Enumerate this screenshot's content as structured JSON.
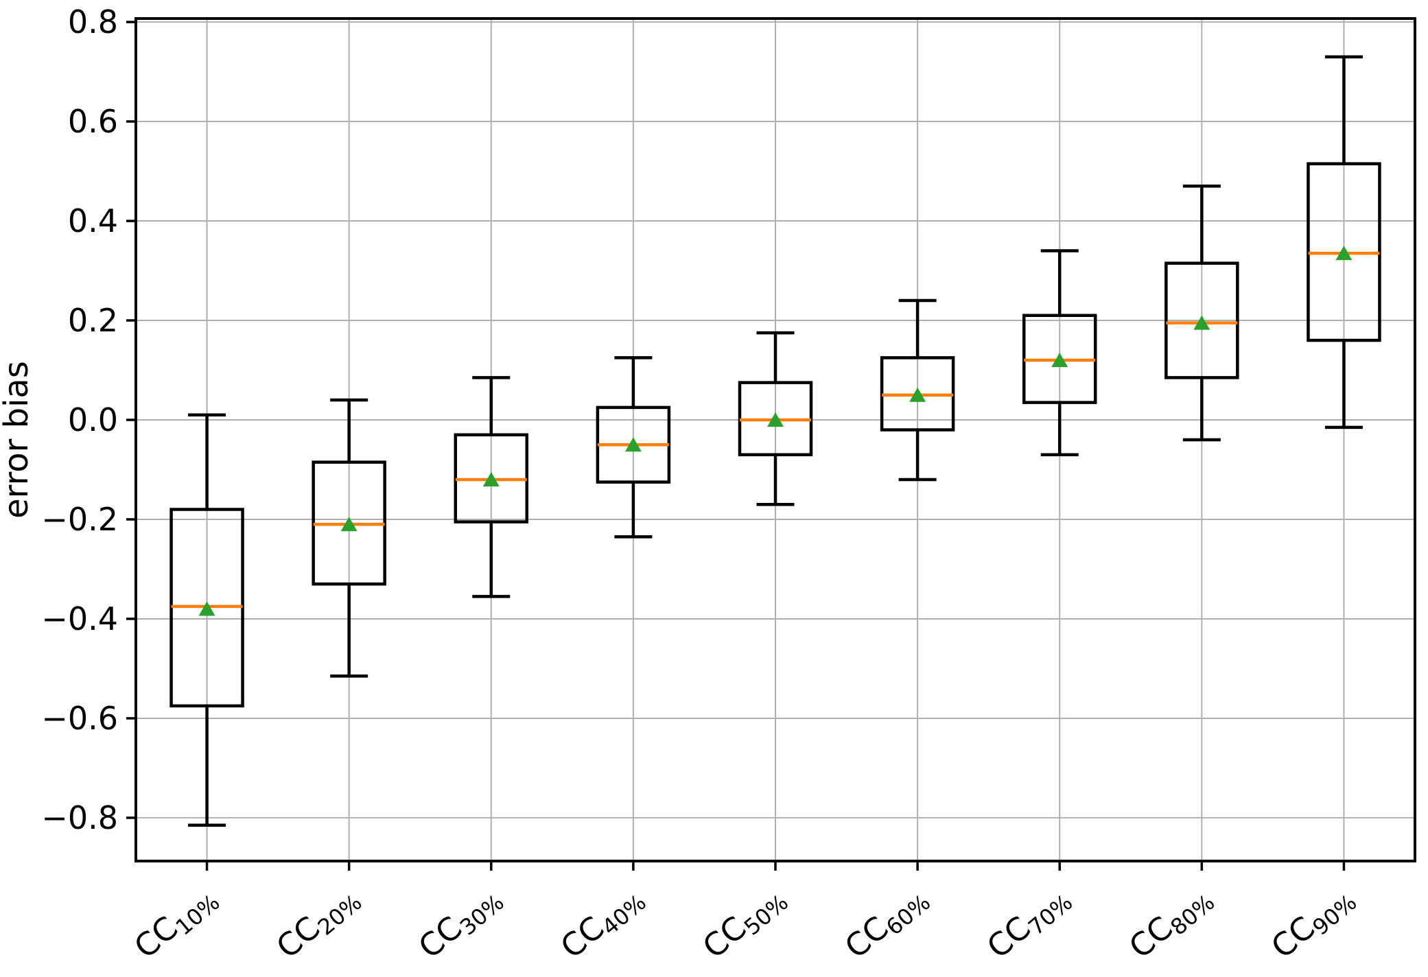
{
  "chart_data": {
    "type": "boxplot",
    "title": "",
    "xlabel": "",
    "ylabel": "error bias",
    "grid": true,
    "legend": "none",
    "ylim": [
      -0.887,
      0.807
    ],
    "y_ticks": [
      {
        "v": 0.8,
        "label": "0.8"
      },
      {
        "v": 0.6,
        "label": "0.6"
      },
      {
        "v": 0.4,
        "label": "0.4"
      },
      {
        "v": 0.2,
        "label": "0.2"
      },
      {
        "v": 0.0,
        "label": "0.0"
      },
      {
        "v": -0.2,
        "label": "−0.2"
      },
      {
        "v": -0.4,
        "label": "−0.4"
      },
      {
        "v": -0.6,
        "label": "−0.6"
      },
      {
        "v": -0.8,
        "label": "−0.8"
      }
    ],
    "categories": [
      {
        "base": "CC",
        "sub": "10%"
      },
      {
        "base": "CC",
        "sub": "20%"
      },
      {
        "base": "CC",
        "sub": "30%"
      },
      {
        "base": "CC",
        "sub": "40%"
      },
      {
        "base": "CC",
        "sub": "50%"
      },
      {
        "base": "CC",
        "sub": "60%"
      },
      {
        "base": "CC",
        "sub": "70%"
      },
      {
        "base": "CC",
        "sub": "80%"
      },
      {
        "base": "CC",
        "sub": "90%"
      }
    ],
    "series": [
      {
        "name": "CC10%",
        "whisker_low": -0.815,
        "q1": -0.575,
        "median": -0.375,
        "mean": -0.38,
        "q3": -0.18,
        "whisker_high": 0.01
      },
      {
        "name": "CC20%",
        "whisker_low": -0.515,
        "q1": -0.33,
        "median": -0.21,
        "mean": -0.21,
        "q3": -0.085,
        "whisker_high": 0.04
      },
      {
        "name": "CC30%",
        "whisker_low": -0.355,
        "q1": -0.205,
        "median": -0.12,
        "mean": -0.12,
        "q3": -0.03,
        "whisker_high": 0.085
      },
      {
        "name": "CC40%",
        "whisker_low": -0.235,
        "q1": -0.125,
        "median": -0.05,
        "mean": -0.05,
        "q3": 0.025,
        "whisker_high": 0.125
      },
      {
        "name": "CC50%",
        "whisker_low": -0.17,
        "q1": -0.07,
        "median": 0.0,
        "mean": 0.0,
        "q3": 0.075,
        "whisker_high": 0.175
      },
      {
        "name": "CC60%",
        "whisker_low": -0.12,
        "q1": -0.02,
        "median": 0.05,
        "mean": 0.05,
        "q3": 0.125,
        "whisker_high": 0.24
      },
      {
        "name": "CC70%",
        "whisker_low": -0.07,
        "q1": 0.035,
        "median": 0.12,
        "mean": 0.12,
        "q3": 0.21,
        "whisker_high": 0.34
      },
      {
        "name": "CC80%",
        "whisker_low": -0.04,
        "q1": 0.085,
        "median": 0.195,
        "mean": 0.195,
        "q3": 0.315,
        "whisker_high": 0.47
      },
      {
        "name": "CC90%",
        "whisker_low": -0.015,
        "q1": 0.16,
        "median": 0.335,
        "mean": 0.335,
        "q3": 0.515,
        "whisker_high": 0.73
      }
    ],
    "colors": {
      "box_line": "#000000",
      "median_line": "#ff7f0e",
      "mean_marker": "#2ca02c",
      "grid_line": "#b0b0b0",
      "background": "#ffffff",
      "tick_text": "#000000"
    }
  }
}
